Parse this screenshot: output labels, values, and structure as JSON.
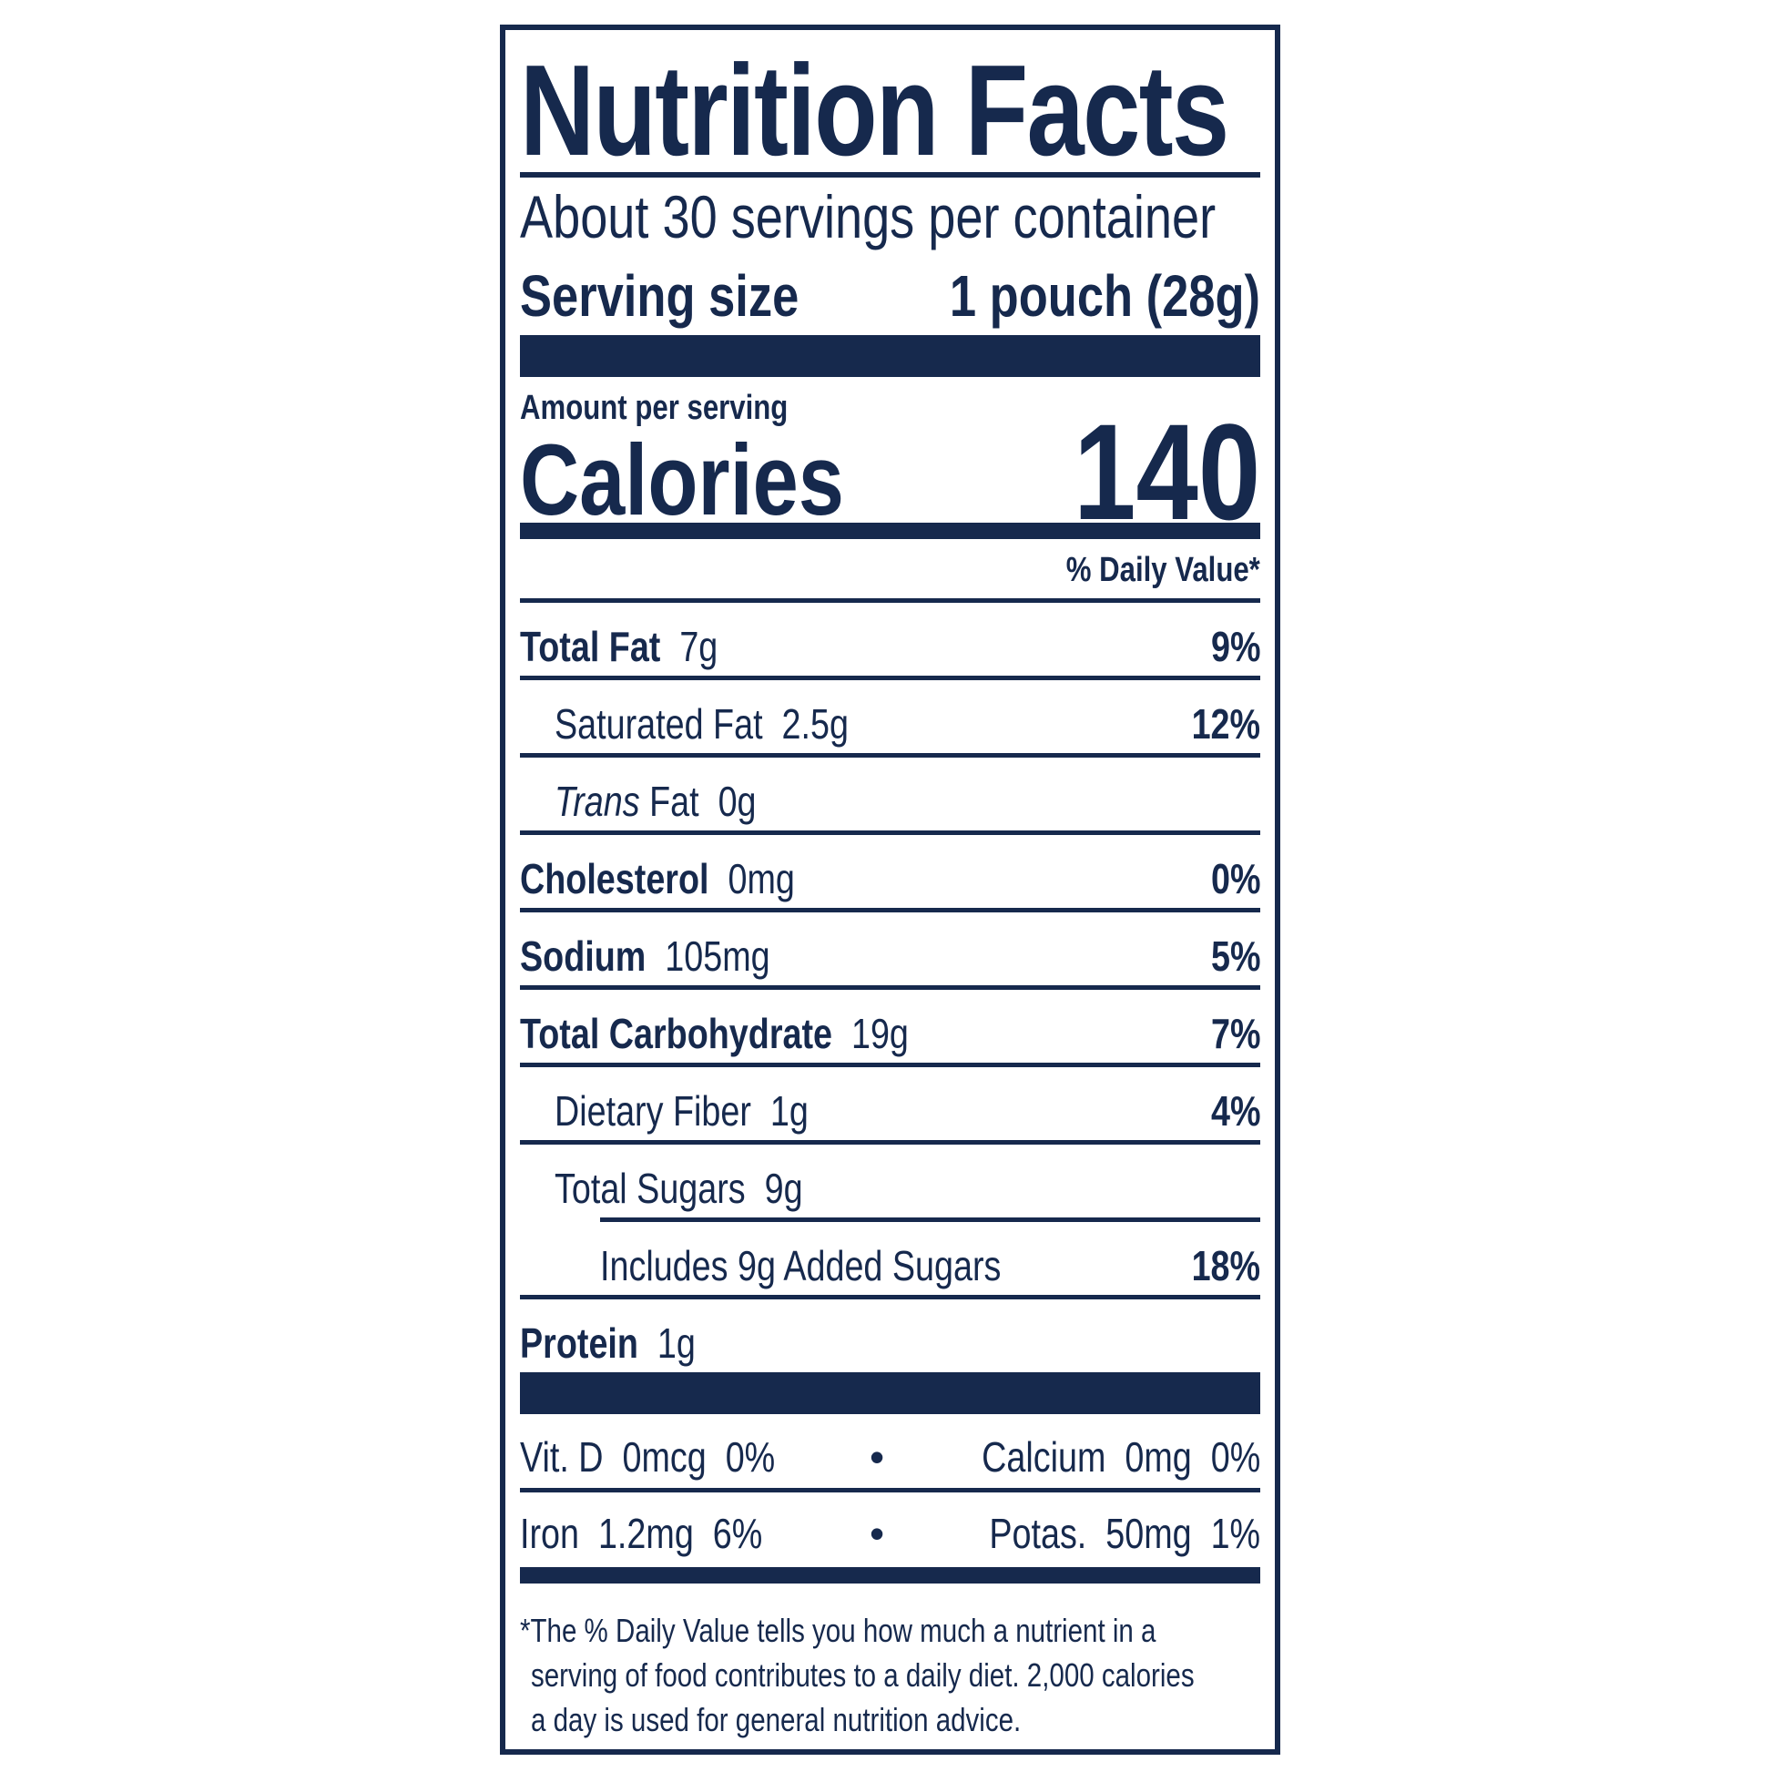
{
  "title": "Nutrition Facts",
  "servings_per_container": "About 30 servings per container",
  "serving_size_label": "Serving size",
  "serving_size_value": "1 pouch (28g)",
  "amount_per_serving": "Amount per serving",
  "calories_label": "Calories",
  "calories_value": "140",
  "daily_value_header": "% Daily Value*",
  "nutrients": [
    {
      "name": "Total Fat",
      "amount": "7g",
      "dv": "9%"
    },
    {
      "name": "Saturated Fat",
      "amount": "2.5g",
      "dv": "12%"
    },
    {
      "name_italic": "Trans",
      "name": "Fat",
      "amount": "0g"
    },
    {
      "name": "Cholesterol",
      "amount": "0mg",
      "dv": "0%"
    },
    {
      "name": "Sodium",
      "amount": "105mg",
      "dv": "5%"
    },
    {
      "name": "Total Carbohydrate",
      "amount": "19g",
      "dv": "7%"
    },
    {
      "name": "Dietary Fiber",
      "amount": "1g",
      "dv": "4%"
    },
    {
      "name": "Total Sugars",
      "amount": "9g"
    },
    {
      "name": "Includes 9g Added Sugars",
      "dv": "18%"
    },
    {
      "name": "Protein",
      "amount": "1g"
    }
  ],
  "micros": [
    {
      "left": "Vit. D  0mcg  0%",
      "right": "Calcium  0mg  0%"
    },
    {
      "left": "Iron  1.2mg  6%",
      "right": "Potas.  50mg  1%"
    }
  ],
  "bullet": "•",
  "footnote": [
    "*The % Daily Value tells you how much a nutrient in a",
    "serving of food contributes to a daily diet. 2,000 calories",
    "a day is used for general nutrition advice."
  ],
  "colors": {
    "ink": "#16294d",
    "background": "#ffffff"
  }
}
